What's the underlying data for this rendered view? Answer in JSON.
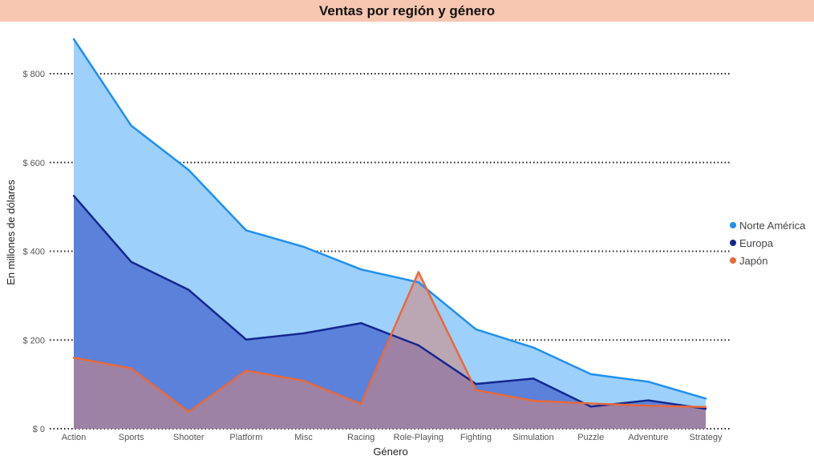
{
  "chart_data": {
    "type": "area",
    "title": "Ventas por región y género",
    "xlabel": "Género",
    "ylabel": "En millones de dólares",
    "categories": [
      "Action",
      "Sports",
      "Shooter",
      "Platform",
      "Misc",
      "Racing",
      "Role-Playing",
      "Fighting",
      "Simulation",
      "Puzzle",
      "Adventure",
      "Strategy"
    ],
    "y_ticks": [
      {
        "value": 0,
        "label": "$ 0"
      },
      {
        "value": 200,
        "label": "$ 200"
      },
      {
        "value": 400,
        "label": "$ 400"
      },
      {
        "value": 600,
        "label": "$ 600"
      },
      {
        "value": 800,
        "label": "$ 800"
      }
    ],
    "ylim": [
      0,
      880
    ],
    "grid": true,
    "legend_position": "right",
    "series": [
      {
        "name": "Norte América",
        "color": "#1f8ff0",
        "fill": "#9dd0fb",
        "fill_opacity": 1.0,
        "values": [
          878,
          683,
          583,
          447,
          410,
          359,
          330,
          224,
          183,
          123,
          106,
          68
        ]
      },
      {
        "name": "Europa",
        "color": "#13278f",
        "fill": "#3f5fcc",
        "fill_opacity": 0.7,
        "values": [
          525,
          376,
          313,
          201,
          215,
          238,
          188,
          101,
          113,
          50,
          64,
          45
        ]
      },
      {
        "name": "Japón",
        "color": "#e8693a",
        "fill": "#d4837a",
        "fill_opacity": 0.55,
        "values": [
          160,
          136,
          38,
          131,
          108,
          56,
          353,
          87,
          63,
          57,
          52,
          49
        ]
      }
    ]
  }
}
